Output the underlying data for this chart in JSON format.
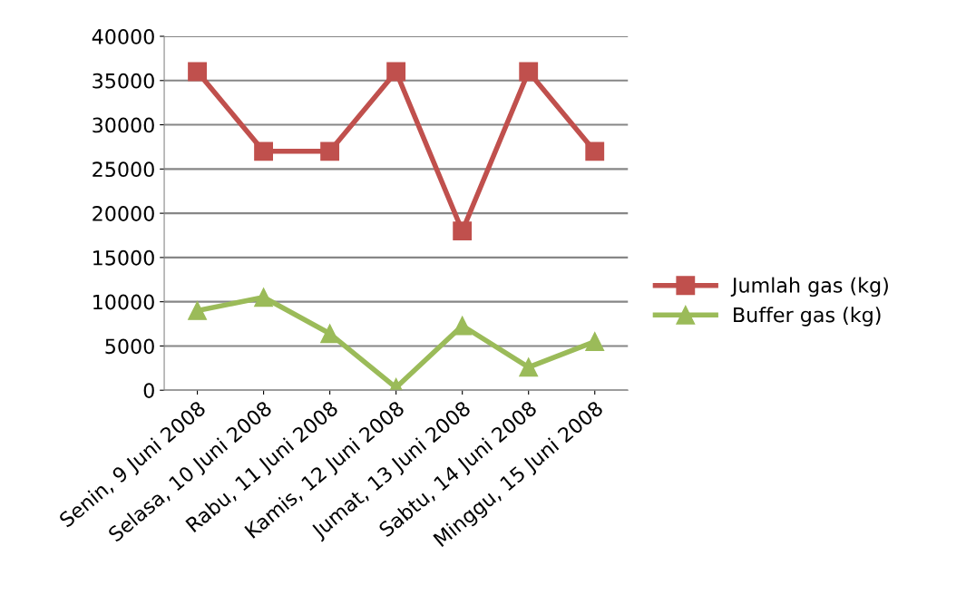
{
  "chart_data": {
    "type": "line",
    "categories": [
      "Senin, 9 Juni 2008",
      "Selasa, 10 Juni 2008",
      "Rabu, 11 Juni 2008",
      "Kamis, 12 Juni 2008",
      "Jumat, 13 Juni 2008",
      "Sabtu, 14 Juni 2008",
      "Minggu, 15 Juni 2008"
    ],
    "series": [
      {
        "name": "Jumlah gas (kg)",
        "color": "#c0504d",
        "marker": "square",
        "values": [
          36000,
          27000,
          27000,
          36000,
          18000,
          36000,
          27000
        ]
      },
      {
        "name": "Buffer gas (kg)",
        "color": "#9bbb59",
        "marker": "triangle",
        "values": [
          9000,
          10500,
          6400,
          300,
          7300,
          2600,
          5500
        ]
      }
    ],
    "ylim": [
      0,
      40000
    ],
    "yticks": [
      0,
      5000,
      10000,
      15000,
      20000,
      25000,
      30000,
      35000,
      40000
    ],
    "grid": "y",
    "legend": "right"
  }
}
